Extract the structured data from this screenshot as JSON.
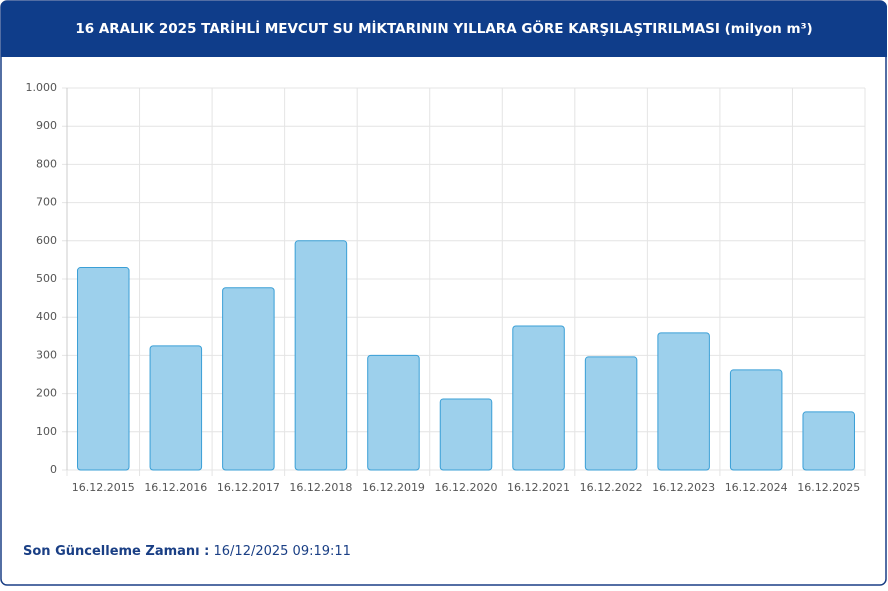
{
  "chart_data": {
    "type": "bar",
    "title": "16 ARALIK 2025 TARİHLİ MEVCUT SU MİKTARININ YILLARA GÖRE KARŞILAŞTIRILMASI (milyon m³)",
    "categories": [
      "16.12.2015",
      "16.12.2016",
      "16.12.2017",
      "16.12.2018",
      "16.12.2019",
      "16.12.2020",
      "16.12.2021",
      "16.12.2022",
      "16.12.2023",
      "16.12.2024",
      "16.12.2025"
    ],
    "values": [
      530,
      325,
      477,
      600,
      300,
      186,
      377,
      296,
      359,
      262,
      152
    ],
    "color": "#9dd0ec",
    "edge_color": "#3a9fd6",
    "ylim": [
      0,
      1000
    ],
    "yticks": [
      0,
      100,
      200,
      300,
      400,
      500,
      600,
      700,
      800,
      900,
      {
        "value": 1000,
        "label": "1.000"
      }
    ],
    "grid": true
  },
  "footer": {
    "label": "Son Güncelleme Zamanı :",
    "value": "16/12/2025 09:19:11"
  }
}
